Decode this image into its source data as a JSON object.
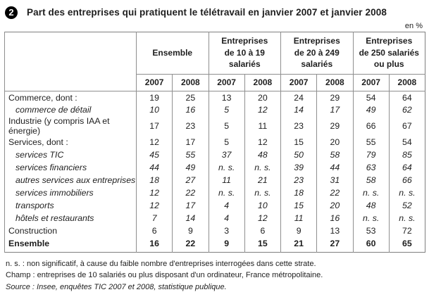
{
  "title": {
    "badge": "2",
    "text": "Part des entreprises qui pratiquent le télétravail en janvier 2007 et janvier 2008"
  },
  "unit_label": "en %",
  "table": {
    "corner_label": "",
    "column_groups": [
      {
        "label": "Ensemble"
      },
      {
        "label": "Entreprises\nde 10 à 19\nsalariés"
      },
      {
        "label": "Entreprises\nde 20 à 249\nsalariés"
      },
      {
        "label": "Entreprises\nde 250 salariés\nou plus"
      }
    ],
    "year_headers": [
      "2007",
      "2008",
      "2007",
      "2008",
      "2007",
      "2008",
      "2007",
      "2008"
    ],
    "rows": [
      {
        "label": "Commerce, dont :",
        "style": "normal",
        "values": [
          "19",
          "25",
          "13",
          "20",
          "24",
          "29",
          "54",
          "64"
        ]
      },
      {
        "label": "commerce de détail",
        "style": "italic",
        "values": [
          "10",
          "16",
          "5",
          "12",
          "14",
          "17",
          "49",
          "62"
        ]
      },
      {
        "label": "Industrie (y compris IAA et énergie)",
        "style": "normal",
        "values": [
          "17",
          "23",
          "5",
          "11",
          "23",
          "29",
          "66",
          "67"
        ]
      },
      {
        "label": "Services, dont :",
        "style": "normal",
        "values": [
          "12",
          "17",
          "5",
          "12",
          "15",
          "20",
          "55",
          "54"
        ]
      },
      {
        "label": "services TIC",
        "style": "italic",
        "values": [
          "45",
          "55",
          "37",
          "48",
          "50",
          "58",
          "79",
          "85"
        ]
      },
      {
        "label": "services financiers",
        "style": "italic",
        "values": [
          "44",
          "49",
          "n. s.",
          "n. s.",
          "39",
          "44",
          "63",
          "64"
        ]
      },
      {
        "label": "autres services aux entreprises",
        "style": "italic",
        "values": [
          "18",
          "27",
          "11",
          "21",
          "23",
          "31",
          "58",
          "66"
        ]
      },
      {
        "label": "services immobiliers",
        "style": "italic",
        "values": [
          "12",
          "22",
          "n. s.",
          "n. s.",
          "18",
          "22",
          "n. s.",
          "n. s."
        ]
      },
      {
        "label": "transports",
        "style": "italic",
        "values": [
          "12",
          "17",
          "4",
          "10",
          "15",
          "20",
          "48",
          "52"
        ]
      },
      {
        "label": "hôtels et restaurants",
        "style": "italic",
        "values": [
          "7",
          "14",
          "4",
          "12",
          "11",
          "16",
          "n. s.",
          "n. s."
        ]
      },
      {
        "label": "Construction",
        "style": "normal",
        "values": [
          "6",
          "9",
          "3",
          "6",
          "9",
          "13",
          "53",
          "72"
        ]
      },
      {
        "label": "Ensemble",
        "style": "bold",
        "values": [
          "16",
          "22",
          "9",
          "15",
          "21",
          "27",
          "60",
          "65"
        ]
      }
    ]
  },
  "notes": [
    {
      "text": "n. s. : non significatif, à cause du faible nombre d'entreprises interrogées dans cette strate.",
      "style": "normal"
    },
    {
      "text": "Champ : entreprises de 10 salariés ou plus disposant d'un ordinateur, France métropolitaine.",
      "style": "normal"
    },
    {
      "text": "Source : Insee, enquêtes TIC 2007 et 2008, statistique publique.",
      "style": "italic"
    }
  ],
  "colors": {
    "border": "#8f8f8f",
    "text": "#1e1e1e",
    "badge_bg": "#000000",
    "badge_fg": "#ffffff"
  }
}
